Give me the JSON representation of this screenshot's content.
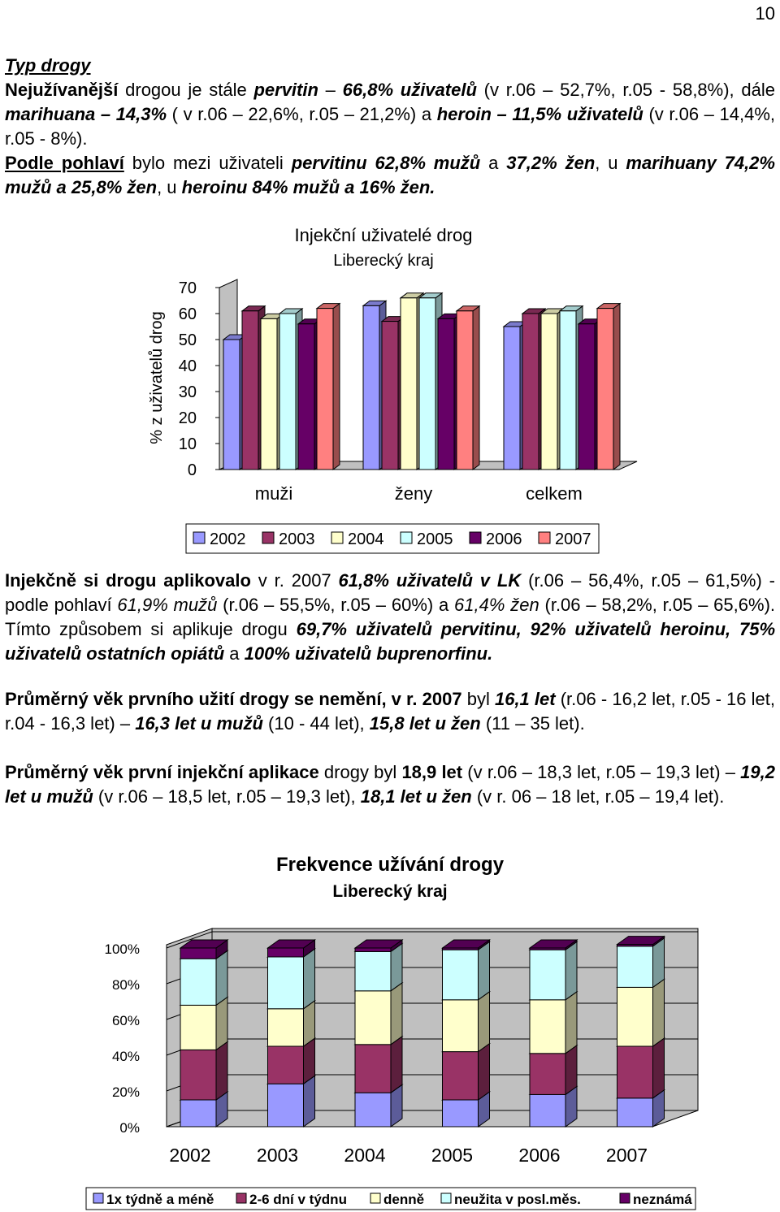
{
  "page_number": "10",
  "section": {
    "heading": "Typ drogy",
    "p1": {
      "a": "Nejužívanější",
      "b": " drogou je stále ",
      "c": "pervitin",
      "d": " – ",
      "e": "66,8% uživatelů",
      "f": " (v r.06 – 52,7%, r.05 - 58,8%), dále ",
      "g": "marihuana – 14,3%",
      "h": " ( v r.06 – 22,6%, r.05 – 21,2%) a ",
      "i": "heroin – 11,5% uživatelů",
      "j": " (v r.06 – 14,4%, r.05 - 8%)."
    },
    "p2": {
      "a": "Podle pohlaví",
      "b": " bylo mezi uživateli ",
      "c": "pervitinu 62,8% mužů",
      "d": " a ",
      "e": "37,2% žen",
      "f": ", u ",
      "g": "marihuany",
      "h": " ",
      "i": "74,2% mužů a 25,8% žen",
      "j": ", u ",
      "k": "heroinu 84% mužů a 16% žen."
    },
    "p3": {
      "a": "Injekčně si drogu aplikovalo",
      "b": " v r. 2007 ",
      "c": "61,8% uživatelů v LK",
      "d": " (r.06 – 56,4%, r.05 – 61,5%) - podle pohlaví ",
      "e": "61,9% mužů",
      "f": " (r.06 – 55,5%, r.05 – 60%) a ",
      "g": "61,4% žen",
      "h": " (r.06 – 58,2%, r.05 – 65,6%). Tímto způsobem si aplikuje drogu ",
      "i": "69,7% uživatelů pervitinu, 92% uživatelů heroinu, 75% uživatelů ostatních opiátů",
      "j": " a ",
      "k": "100% uživatelů buprenorfinu."
    },
    "p4": {
      "a": "Průměrný věk prvního užití drogy se nemění, v r. 2007",
      "b": " byl ",
      "c": "16,1 let",
      "d": " (r.06 - 16,2 let, r.05 - 16 let, r.04 - 16,3 let) – ",
      "e": "16,3 let u mužů",
      "f": " (10 - 44 let), ",
      "g": "15,8 let u žen",
      "h": " (11 – 35 let)."
    },
    "p5": {
      "a": "Průměrný věk první injekční aplikace",
      "b": " drogy byl ",
      "c": "18,9 let",
      "d": " (v r.06 – 18,3 let, r.05 – 19,3 let) – ",
      "e": "19,2 let u mužů",
      "f": " (v r.06 – 18,5 let, r.05 – 19,3 let), ",
      "g": "18,1 let u žen",
      "h": " (v r. 06 – 18 let, r.05 – 19,4 let)."
    }
  },
  "chart_data": [
    {
      "type": "bar",
      "title": "Injekční uživatelé drog",
      "subtitle": "Liberecký kraj",
      "ylabel": "% z uživatelů drog",
      "ylim": [
        0,
        70
      ],
      "yticks": [
        "0",
        "10",
        "20",
        "30",
        "40",
        "50",
        "60",
        "70"
      ],
      "categories": [
        "muži",
        "ženy",
        "celkem"
      ],
      "series": [
        {
          "name": "2002",
          "color": "#9999ff",
          "values": [
            50,
            63,
            55
          ]
        },
        {
          "name": "2003",
          "color": "#993366",
          "values": [
            61,
            57,
            60
          ]
        },
        {
          "name": "2004",
          "color": "#ffffcc",
          "values": [
            58,
            66,
            60
          ]
        },
        {
          "name": "2005",
          "color": "#ccffff",
          "values": [
            60,
            66,
            61
          ]
        },
        {
          "name": "2006",
          "color": "#660066",
          "values": [
            56,
            58,
            56
          ]
        },
        {
          "name": "2007",
          "color": "#ff8080",
          "values": [
            62,
            61,
            62
          ]
        }
      ],
      "legend": "bottom"
    },
    {
      "type": "bar",
      "stacked": "percent",
      "title": "Frekvence užívání drogy",
      "subtitle": "Liberecký kraj",
      "ylim": [
        0,
        100
      ],
      "yticks": [
        "0%",
        "20%",
        "40%",
        "60%",
        "80%",
        "100%"
      ],
      "categories": [
        "2002",
        "2003",
        "2004",
        "2005",
        "2006",
        "2007"
      ],
      "series": [
        {
          "name": "1x týdně a méně",
          "color": "#9999ff",
          "values": [
            15,
            24,
            19,
            15,
            18,
            16
          ]
        },
        {
          "name": "2-6 dní v týdnu",
          "color": "#993366",
          "values": [
            28,
            21,
            27,
            27,
            23,
            29
          ]
        },
        {
          "name": "denně",
          "color": "#ffffcc",
          "values": [
            25,
            21,
            30,
            29,
            30,
            33
          ]
        },
        {
          "name": "neužita v posl.měs.",
          "color": "#ccffff",
          "values": [
            26,
            29,
            22,
            28,
            28,
            23
          ]
        },
        {
          "name": "neznámá",
          "color": "#660066",
          "values": [
            6,
            5,
            2,
            1,
            1,
            1
          ]
        }
      ],
      "legend": "bottom"
    }
  ]
}
